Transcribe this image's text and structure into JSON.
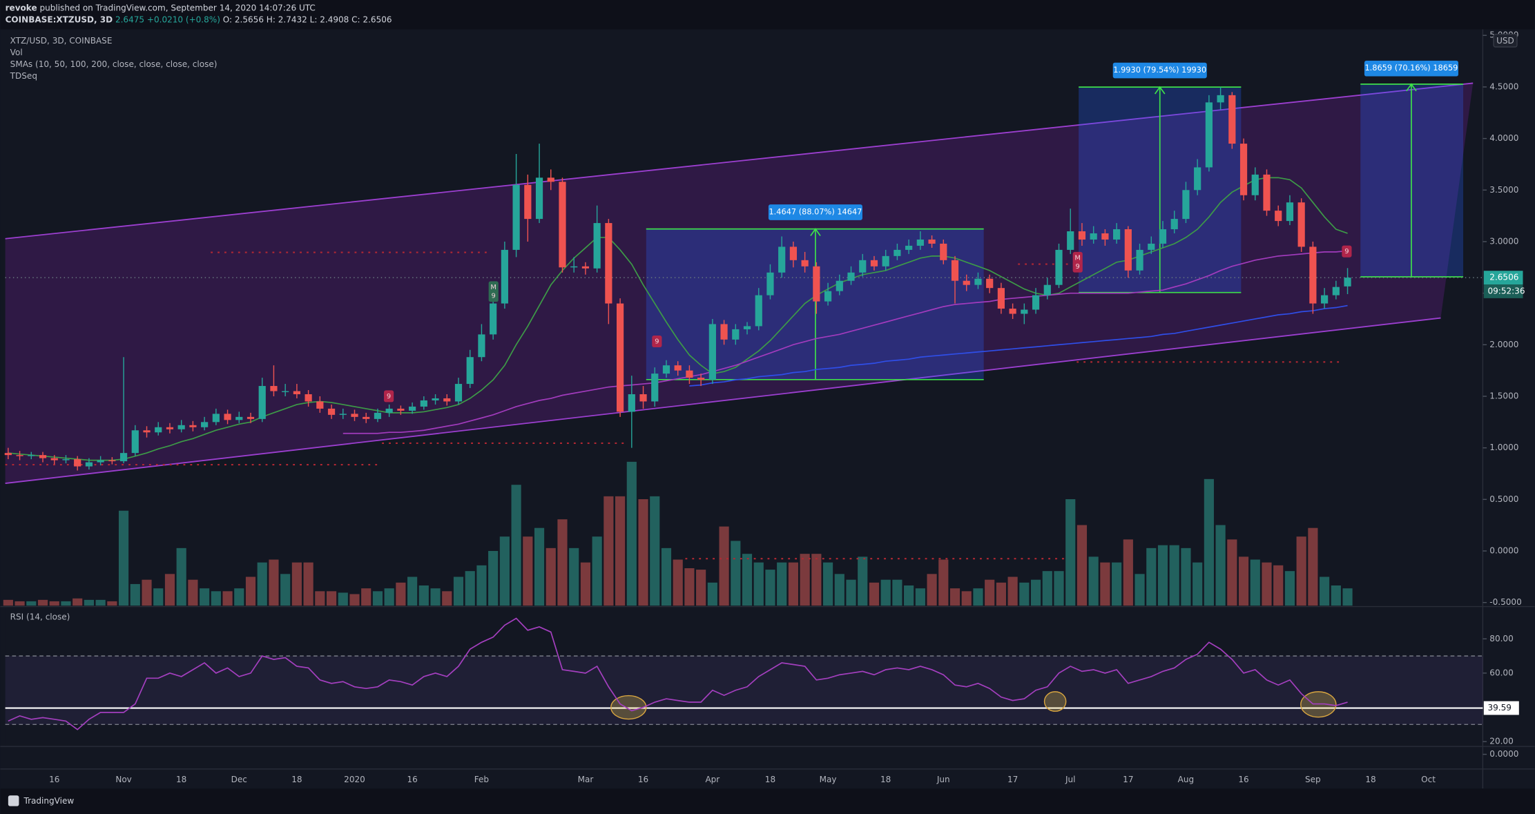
{
  "header": {
    "author": "revoke",
    "published": "published on TradingView.com, September 14, 2020 14:07:26 UTC",
    "symbol": "COINBASE:XTZUSD, 3D",
    "change": "2.6475 +0.0210 (+0.8%)",
    "ohlc": "O: 2.5656 H: 2.7432 L: 2.4908 C: 2.6506"
  },
  "footer": {
    "brand": "TradingView"
  },
  "chart_data": {
    "type": "candlestick",
    "title": "XTZ/USD, 3D, COINBASE",
    "volume_title": "Vol",
    "sma_title": "SMAs (10, 50, 100, 200, close, close, close, close)",
    "td_title": "TDSeq",
    "currency": "USD",
    "countdown": "09:52:36",
    "up_color": "#26a69a",
    "down_color": "#ef5350",
    "volume_up_color": "#22615e",
    "volume_down_color": "#7b3a3d",
    "grid": false,
    "ylim": [
      -0.53,
      5.03
    ],
    "yticks": [
      {
        "value": 5,
        "label": "5.0000"
      },
      {
        "value": 4.5,
        "label": "4.5000"
      },
      {
        "value": 4,
        "label": "4.0000"
      },
      {
        "value": 3.5,
        "label": "3.5000"
      },
      {
        "value": 3,
        "label": "3.0000"
      },
      {
        "value": 2.5,
        "label": "2.5000"
      },
      {
        "value": 2,
        "label": "2.0000"
      },
      {
        "value": 1.5,
        "label": "1.5000"
      },
      {
        "value": 1,
        "label": "1.0000"
      },
      {
        "value": 0.5,
        "label": "0.5000"
      },
      {
        "value": 0,
        "label": "0.0000"
      },
      {
        "value": -0.5,
        "label": "-0.5000"
      }
    ],
    "vlim": [
      0,
      100
    ],
    "categories": [
      null,
      null,
      null,
      null,
      "16",
      null,
      null,
      null,
      null,
      null,
      "Nov",
      null,
      null,
      null,
      null,
      "18",
      null,
      null,
      null,
      null,
      "Dec",
      null,
      null,
      null,
      null,
      "18",
      null,
      null,
      null,
      null,
      "2020",
      null,
      null,
      null,
      null,
      "16",
      null,
      null,
      null,
      null,
      null,
      "Feb",
      null,
      null,
      null,
      null,
      null,
      null,
      null,
      null,
      "Mar",
      null,
      null,
      null,
      null,
      "16",
      null,
      null,
      null,
      null,
      null,
      "Apr",
      null,
      null,
      null,
      null,
      "18",
      null,
      null,
      null,
      null,
      "May",
      null,
      null,
      null,
      null,
      "18",
      null,
      null,
      null,
      null,
      "Jun",
      null,
      null,
      null,
      null,
      null,
      "17",
      null,
      null,
      null,
      null,
      "Jul",
      null,
      null,
      null,
      null,
      "17",
      null,
      null,
      null,
      null,
      "Aug",
      null,
      null,
      null,
      null,
      "16",
      null,
      null,
      null,
      null,
      null,
      "Sep",
      null,
      null,
      null,
      null,
      "18",
      null,
      null,
      null,
      null,
      "Oct",
      null,
      null,
      null,
      null,
      null
    ],
    "open": [
      0.95,
      0.93,
      0.92,
      0.93,
      0.9,
      0.88,
      0.89,
      0.82,
      0.86,
      0.88,
      0.87,
      0.95,
      1.17,
      1.15,
      1.2,
      1.18,
      1.22,
      1.2,
      1.25,
      1.33,
      1.27,
      1.3,
      1.28,
      1.6,
      1.55,
      1.55,
      1.52,
      1.45,
      1.38,
      1.32,
      1.33,
      1.3,
      1.28,
      1.34,
      1.38,
      1.36,
      1.4,
      1.46,
      1.48,
      1.45,
      1.62,
      1.88,
      2.1,
      2.4,
      2.92,
      3.55,
      3.22,
      3.62,
      3.58,
      2.75,
      2.76,
      2.74,
      3.18,
      2.4,
      1.35,
      1.52,
      1.45,
      1.72,
      1.8,
      1.75,
      1.68,
      1.66,
      2.2,
      2.05,
      2.15,
      2.18,
      2.48,
      2.7,
      2.95,
      2.82,
      2.76,
      2.42,
      2.52,
      2.62,
      2.7,
      2.82,
      2.76,
      2.86,
      2.92,
      2.96,
      3.02,
      2.98,
      2.82,
      2.62,
      2.58,
      2.64,
      2.55,
      2.35,
      2.3,
      2.34,
      2.48,
      2.58,
      2.92,
      3.1,
      3.02,
      3.08,
      3.02,
      3.12,
      2.72,
      2.92,
      2.98,
      3.12,
      3.22,
      3.5,
      3.72,
      4.35,
      4.42,
      3.95,
      3.45,
      3.65,
      3.3,
      3.2,
      3.38,
      2.95,
      2.4,
      2.48,
      2.5656,
      null,
      null,
      null,
      null,
      null,
      null,
      null,
      null,
      null,
      null,
      null,
      null
    ],
    "high": [
      1.0,
      0.97,
      0.96,
      0.96,
      0.93,
      0.93,
      0.92,
      0.9,
      0.92,
      0.91,
      1.88,
      1.22,
      1.21,
      1.25,
      1.24,
      1.27,
      1.26,
      1.3,
      1.38,
      1.37,
      1.35,
      1.34,
      1.68,
      1.8,
      1.62,
      1.62,
      1.56,
      1.5,
      1.42,
      1.38,
      1.37,
      1.34,
      1.38,
      1.42,
      1.41,
      1.44,
      1.5,
      1.52,
      1.52,
      1.68,
      1.95,
      2.2,
      2.48,
      3.0,
      3.85,
      3.65,
      3.95,
      3.7,
      3.62,
      2.85,
      2.8,
      3.35,
      3.22,
      2.45,
      1.7,
      1.6,
      1.78,
      1.85,
      1.84,
      1.8,
      1.72,
      2.25,
      2.24,
      2.2,
      2.22,
      2.55,
      2.78,
      3.05,
      3.0,
      2.9,
      2.8,
      2.6,
      2.68,
      2.76,
      2.88,
      2.86,
      2.92,
      2.98,
      3.02,
      3.1,
      3.06,
      3.02,
      2.86,
      2.68,
      2.7,
      2.68,
      2.6,
      2.4,
      2.4,
      2.55,
      2.65,
      2.98,
      3.32,
      3.18,
      3.15,
      3.12,
      3.18,
      3.15,
      2.98,
      3.05,
      3.2,
      3.3,
      3.58,
      3.8,
      4.42,
      4.5,
      4.45,
      4.0,
      3.72,
      3.7,
      3.35,
      3.45,
      3.42,
      3.0,
      2.55,
      2.62,
      2.7432,
      null,
      null,
      null,
      null,
      null,
      null,
      null,
      null,
      null,
      null,
      null,
      null
    ],
    "low": [
      0.89,
      0.88,
      0.89,
      0.86,
      0.84,
      0.85,
      0.78,
      0.79,
      0.83,
      0.84,
      0.85,
      0.92,
      1.1,
      1.12,
      1.14,
      1.15,
      1.16,
      1.17,
      1.22,
      1.23,
      1.24,
      1.24,
      1.25,
      1.5,
      1.5,
      1.48,
      1.4,
      1.34,
      1.28,
      1.28,
      1.26,
      1.24,
      1.25,
      1.3,
      1.32,
      1.33,
      1.37,
      1.42,
      1.41,
      1.42,
      1.58,
      1.84,
      2.05,
      2.35,
      2.85,
      3.0,
      3.18,
      3.5,
      2.7,
      2.7,
      2.68,
      2.7,
      2.2,
      1.3,
      1.0,
      1.38,
      1.4,
      1.68,
      1.7,
      1.62,
      1.6,
      1.62,
      2.0,
      2.0,
      2.1,
      2.14,
      2.44,
      2.65,
      2.75,
      2.7,
      2.3,
      2.38,
      2.48,
      2.58,
      2.66,
      2.72,
      2.72,
      2.82,
      2.88,
      2.92,
      2.94,
      2.78,
      2.4,
      2.52,
      2.54,
      2.5,
      2.3,
      2.25,
      2.2,
      2.3,
      2.44,
      2.55,
      2.88,
      2.96,
      2.98,
      2.96,
      2.98,
      2.65,
      2.68,
      2.88,
      2.94,
      3.08,
      3.18,
      3.45,
      3.68,
      4.28,
      3.9,
      3.4,
      3.4,
      3.25,
      3.15,
      3.16,
      2.9,
      2.3,
      2.35,
      2.44,
      2.4908,
      null,
      null,
      null,
      null,
      null,
      null,
      null,
      null,
      null,
      null,
      null,
      null
    ],
    "close": [
      0.93,
      0.92,
      0.93,
      0.9,
      0.88,
      0.89,
      0.82,
      0.86,
      0.88,
      0.87,
      0.95,
      1.17,
      1.15,
      1.2,
      1.18,
      1.22,
      1.2,
      1.25,
      1.33,
      1.27,
      1.3,
      1.28,
      1.6,
      1.55,
      1.55,
      1.52,
      1.45,
      1.38,
      1.32,
      1.33,
      1.3,
      1.28,
      1.34,
      1.38,
      1.36,
      1.4,
      1.46,
      1.48,
      1.45,
      1.62,
      1.88,
      2.1,
      2.4,
      2.92,
      3.55,
      3.22,
      3.62,
      3.58,
      2.75,
      2.76,
      2.74,
      3.18,
      2.4,
      1.35,
      1.52,
      1.45,
      1.72,
      1.8,
      1.75,
      1.68,
      1.66,
      2.2,
      2.05,
      2.15,
      2.18,
      2.48,
      2.7,
      2.95,
      2.82,
      2.76,
      2.42,
      2.52,
      2.62,
      2.7,
      2.82,
      2.76,
      2.86,
      2.92,
      2.96,
      3.02,
      2.98,
      2.82,
      2.62,
      2.58,
      2.64,
      2.55,
      2.35,
      2.3,
      2.34,
      2.48,
      2.58,
      2.92,
      3.1,
      3.02,
      3.08,
      3.02,
      3.12,
      2.72,
      2.92,
      2.98,
      3.12,
      3.22,
      3.5,
      3.72,
      4.35,
      4.42,
      3.95,
      3.45,
      3.65,
      3.3,
      3.2,
      3.38,
      2.95,
      2.4,
      2.48,
      2.56,
      2.6506,
      null,
      null,
      null,
      null,
      null,
      null,
      null,
      null,
      null,
      null,
      null,
      null
    ],
    "volume": [
      4,
      3,
      3,
      4,
      3,
      3,
      5,
      4,
      4,
      3,
      66,
      15,
      18,
      12,
      22,
      40,
      18,
      12,
      10,
      10,
      12,
      20,
      30,
      32,
      22,
      30,
      30,
      10,
      10,
      9,
      8,
      12,
      10,
      12,
      16,
      20,
      14,
      12,
      10,
      20,
      24,
      28,
      38,
      48,
      84,
      48,
      54,
      40,
      60,
      40,
      30,
      48,
      76,
      76,
      100,
      74,
      76,
      40,
      32,
      26,
      25,
      16,
      55,
      45,
      36,
      30,
      25,
      30,
      30,
      36,
      36,
      30,
      22,
      18,
      34,
      16,
      18,
      18,
      14,
      12,
      22,
      32,
      12,
      10,
      12,
      18,
      16,
      20,
      16,
      18,
      24,
      24,
      74,
      56,
      34,
      30,
      30,
      46,
      22,
      40,
      42,
      42,
      40,
      30,
      88,
      56,
      46,
      34,
      32,
      30,
      28,
      24,
      48,
      54,
      20,
      14,
      12,
      null,
      null,
      null,
      null,
      null,
      null,
      null,
      null,
      null,
      null,
      null,
      null
    ],
    "smas": [
      {
        "color": "#3d9b47",
        "values": [
          0.95,
          0.94,
          0.93,
          0.92,
          0.91,
          0.9,
          0.89,
          0.88,
          0.88,
          0.88,
          0.89,
          0.92,
          0.95,
          0.99,
          1.02,
          1.06,
          1.09,
          1.13,
          1.17,
          1.2,
          1.23,
          1.25,
          1.3,
          1.34,
          1.38,
          1.42,
          1.44,
          1.45,
          1.44,
          1.42,
          1.4,
          1.38,
          1.36,
          1.34,
          1.34,
          1.34,
          1.35,
          1.37,
          1.39,
          1.42,
          1.48,
          1.56,
          1.66,
          1.8,
          2.0,
          2.18,
          2.38,
          2.58,
          2.72,
          2.84,
          2.94,
          3.04,
          3.04,
          2.92,
          2.78,
          2.58,
          2.4,
          2.22,
          2.05,
          1.9,
          1.8,
          1.72,
          1.74,
          1.78,
          1.86,
          1.94,
          2.04,
          2.16,
          2.28,
          2.4,
          2.48,
          2.54,
          2.6,
          2.64,
          2.68,
          2.7,
          2.72,
          2.76,
          2.8,
          2.84,
          2.86,
          2.86,
          2.84,
          2.8,
          2.76,
          2.72,
          2.66,
          2.6,
          2.54,
          2.5,
          2.48,
          2.5,
          2.56,
          2.62,
          2.68,
          2.74,
          2.8,
          2.82,
          2.86,
          2.9,
          2.94,
          2.98,
          3.04,
          3.12,
          3.24,
          3.38,
          3.48,
          3.54,
          3.6,
          3.62,
          3.62,
          3.6,
          3.52,
          3.38,
          3.24,
          3.12,
          3.08,
          null,
          null,
          null,
          null,
          null,
          null,
          null,
          null,
          null,
          null,
          null,
          null
        ]
      },
      {
        "color": "#a23bbd",
        "values": [
          null,
          null,
          null,
          null,
          null,
          null,
          null,
          null,
          null,
          null,
          null,
          null,
          null,
          null,
          null,
          null,
          null,
          null,
          null,
          null,
          null,
          null,
          null,
          null,
          null,
          null,
          null,
          null,
          null,
          1.14,
          1.14,
          1.14,
          1.14,
          1.15,
          1.15,
          1.16,
          1.17,
          1.19,
          1.21,
          1.23,
          1.26,
          1.29,
          1.32,
          1.36,
          1.4,
          1.43,
          1.46,
          1.48,
          1.51,
          1.53,
          1.55,
          1.57,
          1.59,
          1.6,
          1.61,
          1.62,
          1.63,
          1.65,
          1.67,
          1.69,
          1.71,
          1.74,
          1.77,
          1.8,
          1.84,
          1.88,
          1.92,
          1.96,
          2.0,
          2.03,
          2.06,
          2.08,
          2.1,
          2.13,
          2.16,
          2.19,
          2.22,
          2.25,
          2.28,
          2.31,
          2.34,
          2.37,
          2.39,
          2.4,
          2.41,
          2.42,
          2.44,
          2.45,
          2.46,
          2.47,
          2.48,
          2.49,
          2.5,
          2.5,
          2.5,
          2.5,
          2.5,
          2.5,
          2.51,
          2.52,
          2.53,
          2.56,
          2.59,
          2.63,
          2.67,
          2.72,
          2.76,
          2.79,
          2.82,
          2.84,
          2.86,
          2.87,
          2.88,
          2.89,
          2.9,
          2.9,
          2.91,
          null,
          null,
          null,
          null,
          null,
          null,
          null,
          null,
          null,
          null,
          null,
          null
        ]
      },
      {
        "color": "#2f4ee8",
        "values": [
          null,
          null,
          null,
          null,
          null,
          null,
          null,
          null,
          null,
          null,
          null,
          null,
          null,
          null,
          null,
          null,
          null,
          null,
          null,
          null,
          null,
          null,
          null,
          null,
          null,
          null,
          null,
          null,
          null,
          null,
          null,
          null,
          null,
          null,
          null,
          null,
          null,
          null,
          null,
          null,
          null,
          null,
          null,
          null,
          null,
          null,
          null,
          null,
          null,
          null,
          null,
          null,
          null,
          null,
          null,
          null,
          null,
          null,
          null,
          1.6,
          1.61,
          1.63,
          1.64,
          1.66,
          1.67,
          1.69,
          1.7,
          1.71,
          1.73,
          1.74,
          1.76,
          1.77,
          1.78,
          1.8,
          1.81,
          1.82,
          1.84,
          1.85,
          1.86,
          1.88,
          1.89,
          1.9,
          1.91,
          1.92,
          1.93,
          1.94,
          1.95,
          1.96,
          1.97,
          1.98,
          1.99,
          2.0,
          2.01,
          2.02,
          2.03,
          2.04,
          2.05,
          2.06,
          2.07,
          2.08,
          2.1,
          2.11,
          2.13,
          2.15,
          2.17,
          2.19,
          2.21,
          2.23,
          2.25,
          2.27,
          2.29,
          2.3,
          2.32,
          2.33,
          2.35,
          2.36,
          2.38,
          null,
          null,
          null,
          null,
          null,
          null,
          null,
          null,
          null,
          null,
          null,
          null
        ]
      }
    ],
    "annotations": [
      "1.4647 (88.07%) 14647",
      "1.9930 (79.54%) 19930",
      "1.8659 (70.16%) 18659"
    ],
    "td_labels": [
      [
        "9"
      ],
      [
        "M",
        "9"
      ],
      [
        "9"
      ],
      [
        "M",
        "9"
      ],
      [
        "9"
      ]
    ],
    "rsi": {
      "title": "RSI (14, close)",
      "color": "#a43fbf",
      "ylim": [
        17.7,
        97.7
      ],
      "yticks": [
        {
          "value": 80,
          "label": "80.00"
        },
        {
          "value": 60,
          "label": "60.00"
        },
        {
          "value": 20,
          "label": "20.00"
        }
      ],
      "bands": [
        70,
        30
      ],
      "line_level": 39.59,
      "values": [
        32,
        35,
        33,
        34,
        33,
        32,
        27,
        33,
        37,
        37,
        37,
        42,
        57,
        57,
        60,
        58,
        62,
        66,
        60,
        63,
        58,
        60,
        70,
        68,
        69,
        64,
        63,
        56,
        54,
        55,
        52,
        51,
        52,
        56,
        55,
        53,
        58,
        60,
        58,
        64,
        74,
        78,
        81,
        88,
        92,
        85,
        87,
        84,
        62,
        61,
        60,
        64,
        52,
        42,
        38,
        40,
        43,
        45,
        44,
        43,
        43,
        50,
        47,
        50,
        52,
        58,
        62,
        66,
        65,
        64,
        56,
        57,
        59,
        60,
        61,
        59,
        62,
        63,
        62,
        64,
        62,
        59,
        53,
        52,
        54,
        51,
        46,
        44,
        45,
        50,
        52,
        60,
        64,
        61,
        62,
        60,
        62,
        54,
        56,
        58,
        61,
        63,
        68,
        71,
        78,
        74,
        68,
        60,
        62,
        56,
        53,
        56,
        48,
        42,
        42,
        41,
        43,
        null,
        null,
        null,
        null,
        null,
        null,
        null,
        null,
        null,
        null,
        null,
        null
      ]
    },
    "td_pane_tick": {
      "value": 0,
      "label": "0.0000"
    }
  }
}
